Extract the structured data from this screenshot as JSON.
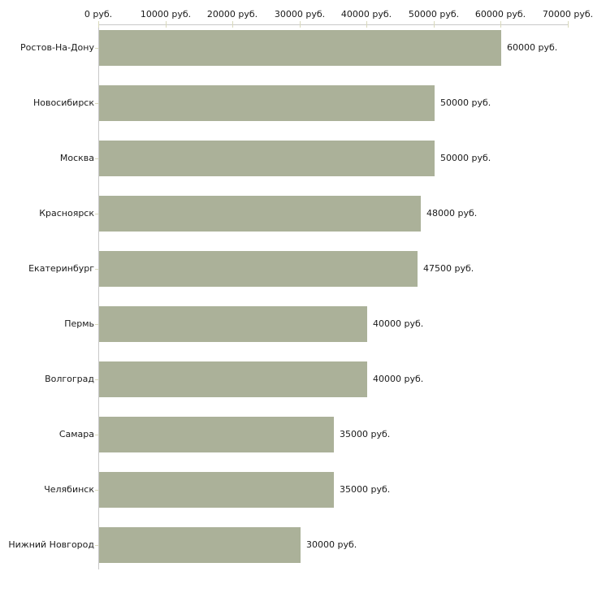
{
  "chart_data": {
    "type": "bar",
    "orientation": "horizontal",
    "title": "",
    "xlabel": "",
    "ylabel": "",
    "unit": "руб.",
    "categories": [
      "Ростов-На-Дону",
      "Новосибирск",
      "Москва",
      "Красноярск",
      "Екатеринбург",
      "Пермь",
      "Волгоград",
      "Самара",
      "Челябинск",
      "Нижний Новгород"
    ],
    "values": [
      60000,
      50000,
      50000,
      48000,
      47500,
      40000,
      40000,
      35000,
      35000,
      30000
    ],
    "value_labels": [
      "60000 руб.",
      "50000 руб.",
      "50000 руб.",
      "48000 руб.",
      "47500 руб.",
      "40000 руб.",
      "40000 руб.",
      "35000 руб.",
      "35000 руб.",
      "30000 руб."
    ],
    "x_ticks": [
      0,
      10000,
      20000,
      30000,
      40000,
      50000,
      60000,
      70000
    ],
    "x_tick_labels": [
      "0 руб.",
      "10000 руб.",
      "20000 руб.",
      "30000 руб.",
      "40000 руб.",
      "50000 руб.",
      "60000 руб.",
      "70000 руб."
    ],
    "xlim": [
      0,
      70000
    ],
    "grid": false,
    "legend": null,
    "colors": {
      "bar": "#abb199",
      "axis_line": "#c8c8c8",
      "tick_mark": "#d9d9bb",
      "text": "#1a1a1a",
      "background": "#ffffff"
    }
  }
}
